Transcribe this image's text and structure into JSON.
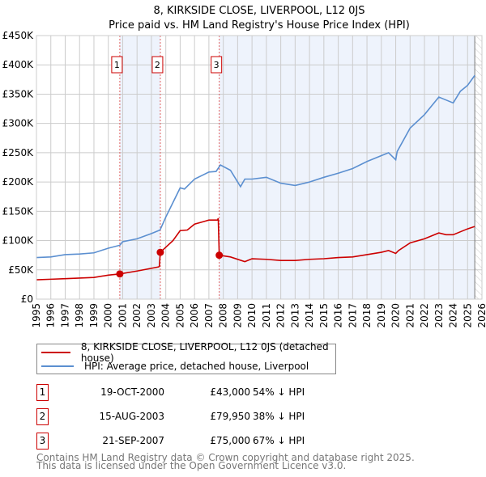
{
  "title": "8, KIRKSIDE CLOSE, LIVERPOOL, L12 0JS",
  "subtitle": "Price paid vs. HM Land Registry's House Price Index (HPI)",
  "chart_data": {
    "type": "line",
    "title": "8, KIRKSIDE CLOSE, LIVERPOOL, L12 0JS — Price paid vs. HM Land Registry's House Price Index (HPI)",
    "xlim": [
      1995,
      2026
    ],
    "ylim": [
      0,
      450000
    ],
    "x_ticks": [
      "1995",
      "1996",
      "1997",
      "1998",
      "1999",
      "2000",
      "2001",
      "2002",
      "2003",
      "2004",
      "2005",
      "2006",
      "2007",
      "2008",
      "2009",
      "2010",
      "2011",
      "2012",
      "2013",
      "2014",
      "2015",
      "2016",
      "2017",
      "2018",
      "2019",
      "2020",
      "2021",
      "2022",
      "2023",
      "2024",
      "2025",
      "2026"
    ],
    "y_ticks": [
      "£0",
      "£50K",
      "£100K",
      "£150K",
      "£200K",
      "£250K",
      "£300K",
      "£350K",
      "£400K",
      "£450K"
    ],
    "grid": true,
    "colors": {
      "property": "#cc0000",
      "hpi": "#5b8fd0",
      "shade": "#eef3fc"
    },
    "series": [
      {
        "name": "8, KIRKSIDE CLOSE, LIVERPOOL, L12 0JS (detached house)",
        "x": [
          1995,
          1996,
          1997,
          1998,
          1999,
          2000,
          2000.8,
          2002,
          2003.5,
          2003.55,
          2003.62,
          2004.5,
          2005,
          2005.5,
          2006,
          2007,
          2007.6,
          2007.65,
          2007.72,
          2008.5,
          2009.5,
          2010,
          2011,
          2012,
          2013,
          2014,
          2015,
          2016,
          2017,
          2018,
          2019,
          2019.5,
          2020,
          2020.2,
          2021,
          2022,
          2023,
          2023.5,
          2024,
          2024.5,
          2025,
          2025.5
        ],
        "y": [
          33000,
          34000,
          35000,
          36000,
          37000,
          41000,
          43000,
          48000,
          55000,
          56000,
          79950,
          100000,
          117000,
          118000,
          128000,
          135000,
          135000,
          138000,
          75000,
          72000,
          64000,
          69000,
          68000,
          66000,
          66000,
          68000,
          69000,
          71000,
          72000,
          76000,
          80000,
          83000,
          78000,
          83000,
          96000,
          103000,
          113000,
          110000,
          110000,
          115000,
          120000,
          124000
        ]
      },
      {
        "name": "HPI: Average price, detached house, Liverpool",
        "x": [
          1995,
          1996,
          1997,
          1998,
          1999,
          2000,
          2000.8,
          2001,
          2002,
          2003,
          2003.6,
          2004,
          2005,
          2005.3,
          2006,
          2007,
          2007.5,
          2007.8,
          2008.5,
          2009.2,
          2009.5,
          2010,
          2011,
          2012,
          2013,
          2014,
          2015,
          2016,
          2017,
          2018,
          2019,
          2019.5,
          2020,
          2020.1,
          2021,
          2022,
          2023,
          2023.5,
          2024,
          2024.5,
          2025,
          2025.5
        ],
        "y": [
          71000,
          72000,
          76000,
          77000,
          79000,
          87000,
          92000,
          98000,
          103000,
          112000,
          118000,
          140000,
          190000,
          188000,
          205000,
          217000,
          218000,
          229000,
          220000,
          192000,
          205000,
          205000,
          208000,
          198000,
          194000,
          200000,
          208000,
          215000,
          223000,
          235000,
          245000,
          250000,
          238000,
          252000,
          292000,
          315000,
          345000,
          340000,
          335000,
          355000,
          365000,
          382000
        ]
      }
    ],
    "sales": [
      {
        "label": "1",
        "x": 2000.8,
        "y": 43000
      },
      {
        "label": "2",
        "x": 2003.62,
        "y": 79950
      },
      {
        "label": "3",
        "x": 2007.72,
        "y": 75000
      }
    ],
    "forecast_from": 2025.5
  },
  "legend": {
    "property": "8, KIRKSIDE CLOSE, LIVERPOOL, L12 0JS (detached house)",
    "hpi": "HPI: Average price, detached house, Liverpool"
  },
  "table": [
    {
      "num": "1",
      "date": "19-OCT-2000",
      "price": "£43,000",
      "hpi": "54% ↓ HPI"
    },
    {
      "num": "2",
      "date": "15-AUG-2003",
      "price": "£79,950",
      "hpi": "38% ↓ HPI"
    },
    {
      "num": "3",
      "date": "21-SEP-2007",
      "price": "£75,000",
      "hpi": "67% ↓ HPI"
    }
  ],
  "footer": {
    "line1": "Contains HM Land Registry data © Crown copyright and database right 2025.",
    "line2": "This data is licensed under the Open Government Licence v3.0."
  }
}
